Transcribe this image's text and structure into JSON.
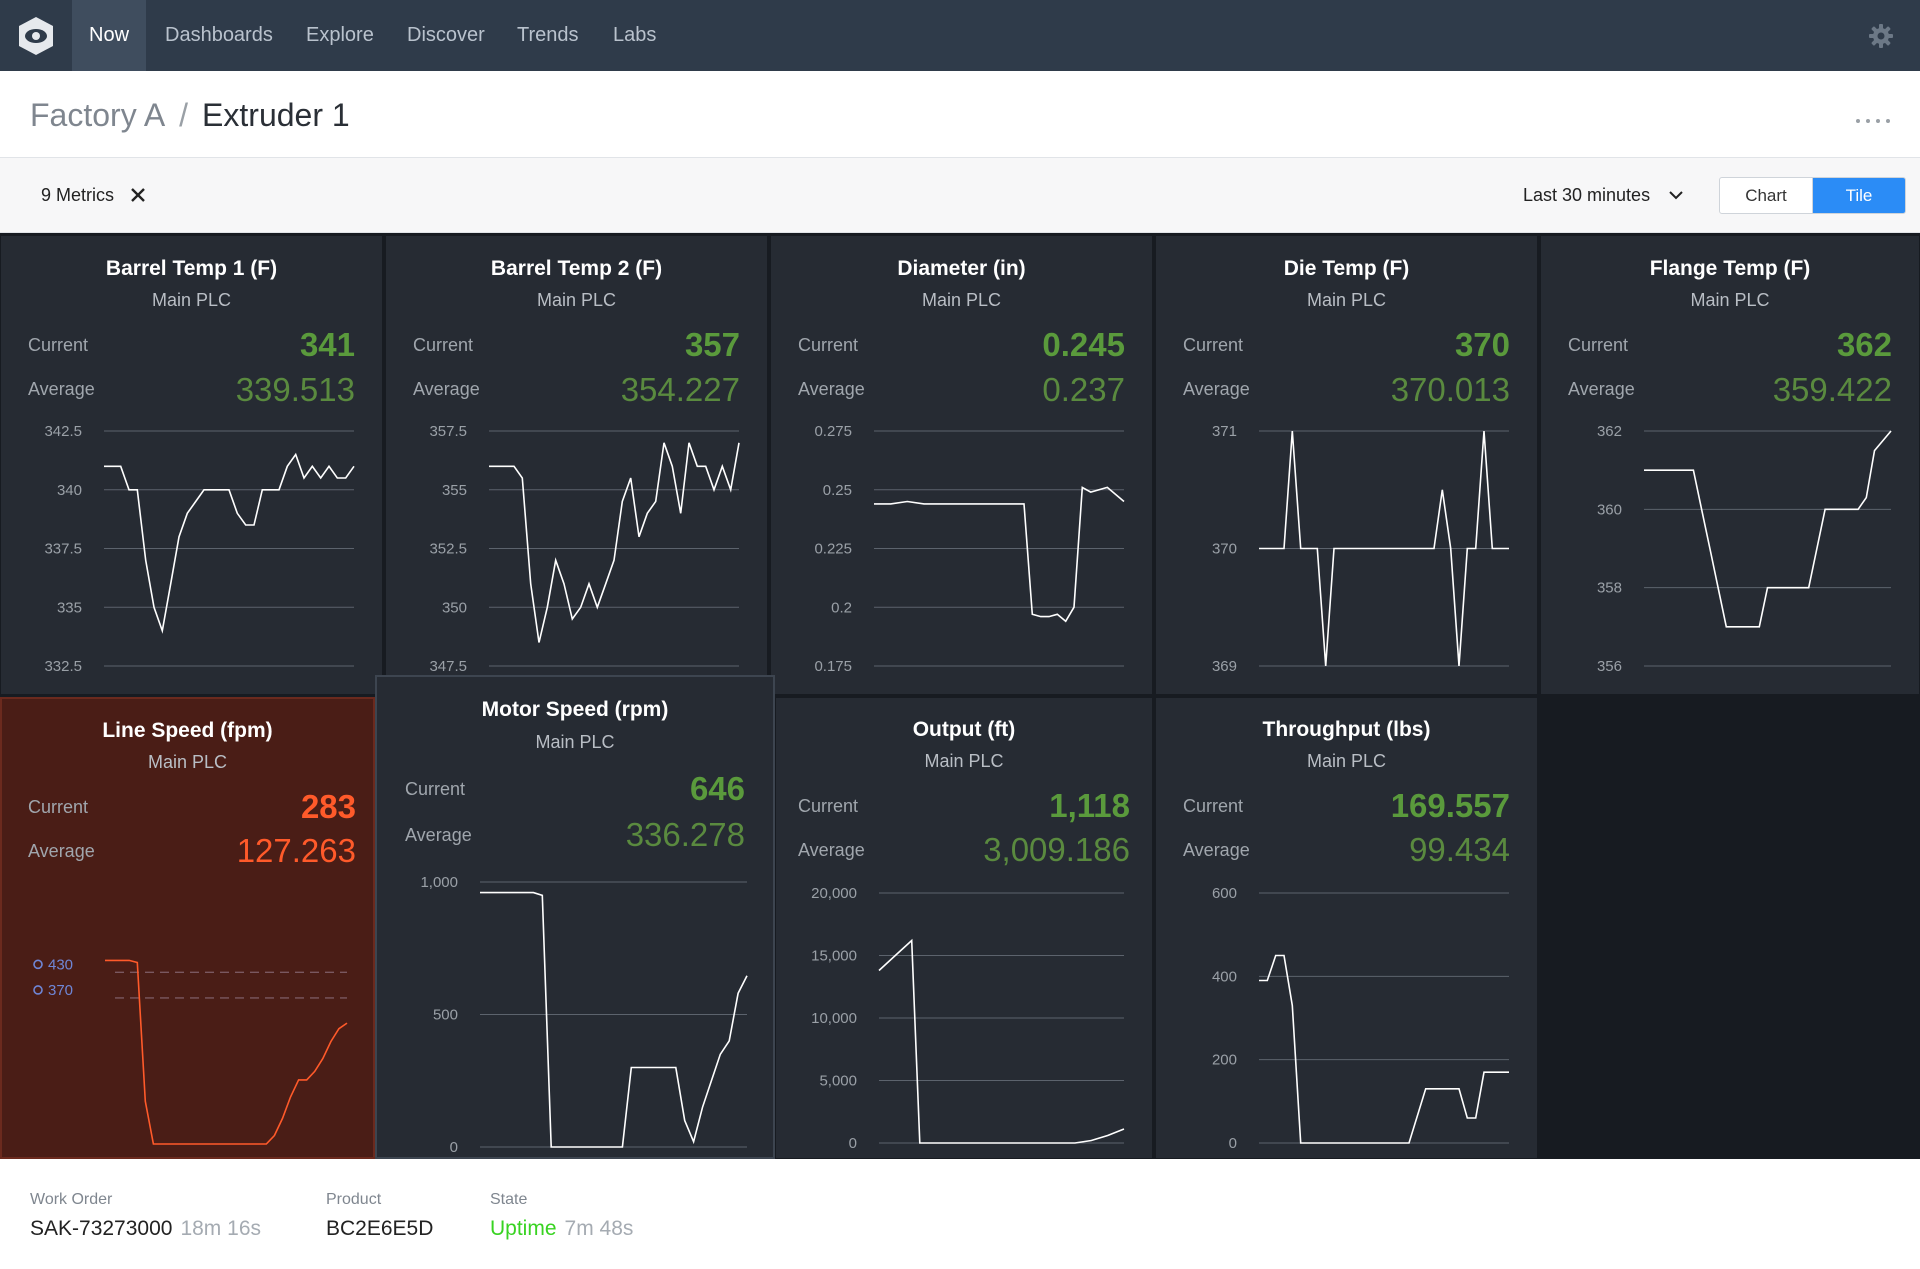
{
  "nav": {
    "items": [
      "Now",
      "Dashboards",
      "Explore",
      "Discover",
      "Trends",
      "Labs"
    ],
    "active": "Now"
  },
  "breadcrumb": {
    "parent": "Factory A",
    "separator": "/",
    "current": "Extruder 1"
  },
  "filter": {
    "metrics_label": "9 Metrics",
    "time_range": "Last 30 minutes",
    "view_chart": "Chart",
    "view_tile": "Tile",
    "active_view": "Tile"
  },
  "labels": {
    "current": "Current",
    "average": "Average"
  },
  "colors": {
    "good": "#5a9a3c",
    "alert": "#ff5a2a",
    "accent": "#2b8cf6",
    "alert_bg": "#4a1d16",
    "uptime": "#38d321"
  },
  "tiles": [
    {
      "title": "Barrel Temp 1 (F)",
      "source": "Main PLC",
      "current": "341",
      "average": "339.513",
      "status": "normal"
    },
    {
      "title": "Barrel Temp 2 (F)",
      "source": "Main PLC",
      "current": "357",
      "average": "354.227",
      "status": "normal"
    },
    {
      "title": "Diameter (in)",
      "source": "Main PLC",
      "current": "0.245",
      "average": "0.237",
      "status": "normal"
    },
    {
      "title": "Die Temp (F)",
      "source": "Main PLC",
      "current": "370",
      "average": "370.013",
      "status": "normal"
    },
    {
      "title": "Flange Temp (F)",
      "source": "Main PLC",
      "current": "362",
      "average": "359.422",
      "status": "normal"
    },
    {
      "title": "Line Speed (fpm)",
      "source": "Main PLC",
      "current": "283",
      "average": "127.263",
      "status": "alert"
    },
    {
      "title": "Motor Speed (rpm)",
      "source": "Main PLC",
      "current": "646",
      "average": "336.278",
      "status": "normal"
    },
    {
      "title": "Output (ft)",
      "source": "Main PLC",
      "current": "1,118",
      "average": "3,009.186",
      "status": "normal"
    },
    {
      "title": "Throughput (lbs)",
      "source": "Main PLC",
      "current": "169.557",
      "average": "99.434",
      "status": "normal"
    }
  ],
  "chart_data": [
    {
      "type": "line",
      "title": "Barrel Temp 1 (F)",
      "yticks": [
        "342.5",
        "340",
        "337.5",
        "335",
        "332.5"
      ],
      "ylim": [
        332.5,
        342.5
      ],
      "x": [
        0,
        1,
        2,
        3,
        4,
        5,
        6,
        7,
        8,
        9,
        10,
        11,
        12,
        13,
        14,
        15,
        16,
        17,
        18,
        19,
        20,
        21,
        22,
        23,
        24,
        25,
        26,
        27,
        28,
        29,
        30
      ],
      "y": [
        341,
        341,
        341,
        340,
        340,
        337,
        335,
        334,
        336,
        338,
        339,
        339.5,
        340,
        340,
        340,
        340,
        339,
        338.5,
        338.5,
        340,
        340,
        340,
        341,
        341.5,
        340.5,
        341,
        340.5,
        341,
        340.5,
        340.5,
        341
      ]
    },
    {
      "type": "line",
      "title": "Barrel Temp 2 (F)",
      "yticks": [
        "357.5",
        "355",
        "352.5",
        "350",
        "347.5"
      ],
      "ylim": [
        347.5,
        357.5
      ],
      "x": [
        0,
        1,
        2,
        3,
        4,
        5,
        6,
        7,
        8,
        9,
        10,
        11,
        12,
        13,
        14,
        15,
        16,
        17,
        18,
        19,
        20,
        21,
        22,
        23,
        24,
        25,
        26,
        27,
        28,
        29,
        30
      ],
      "y": [
        356,
        356,
        356,
        356,
        355.5,
        351,
        348.5,
        350,
        352,
        351,
        349.5,
        350,
        351,
        350,
        351,
        352,
        354.5,
        355.5,
        353,
        354,
        354.5,
        357,
        356,
        354,
        357,
        356,
        356,
        355,
        356,
        355,
        357
      ]
    },
    {
      "type": "line",
      "title": "Diameter (in)",
      "yticks": [
        "0.275",
        "0.25",
        "0.225",
        "0.2",
        "0.175"
      ],
      "ylim": [
        0.175,
        0.275
      ],
      "x": [
        0,
        2,
        4,
        6,
        8,
        10,
        12,
        14,
        16,
        17,
        18,
        19,
        20,
        21,
        22,
        23,
        24,
        25,
        26,
        28,
        30
      ],
      "y": [
        0.244,
        0.244,
        0.245,
        0.244,
        0.244,
        0.244,
        0.244,
        0.244,
        0.244,
        0.244,
        0.244,
        0.197,
        0.196,
        0.196,
        0.197,
        0.194,
        0.2,
        0.251,
        0.249,
        0.251,
        0.245
      ]
    },
    {
      "type": "line",
      "title": "Die Temp (F)",
      "yticks": [
        "371",
        "370",
        "369"
      ],
      "ylim": [
        369,
        371
      ],
      "x": [
        0,
        2,
        3,
        4,
        5,
        7,
        8,
        9,
        10,
        12,
        14,
        16,
        18,
        20,
        21,
        22,
        23,
        24,
        25,
        26,
        27,
        28,
        30
      ],
      "y": [
        370,
        370,
        370,
        371,
        370,
        370,
        369,
        370,
        370,
        370,
        370,
        370,
        370,
        370,
        370,
        370.5,
        370,
        369,
        370,
        370,
        371,
        370,
        370
      ]
    },
    {
      "type": "line",
      "title": "Flange Temp (F)",
      "yticks": [
        "362",
        "360",
        "358",
        "356"
      ],
      "ylim": [
        356,
        362
      ],
      "x": [
        0,
        2,
        4,
        6,
        7,
        8,
        9,
        10,
        12,
        14,
        15,
        16,
        18,
        20,
        21,
        22,
        24,
        26,
        27,
        28,
        30
      ],
      "y": [
        361,
        361,
        361,
        361,
        360,
        359,
        358,
        357,
        357,
        357,
        358,
        358,
        358,
        358,
        359,
        360,
        360,
        360,
        360.3,
        361.5,
        362
      ]
    },
    {
      "type": "line",
      "title": "Line Speed (fpm)",
      "annotations": [
        "430",
        "370"
      ],
      "x": [
        0,
        1,
        2,
        3,
        4,
        5,
        6,
        8,
        10,
        12,
        14,
        16,
        18,
        20,
        21,
        22,
        23,
        24,
        25,
        26,
        27,
        28,
        29,
        30
      ],
      "y": [
        430,
        430,
        430,
        430,
        425,
        100,
        0,
        0,
        0,
        0,
        0,
        0,
        0,
        0,
        20,
        60,
        110,
        150,
        150,
        170,
        200,
        240,
        270,
        283
      ]
    },
    {
      "type": "line",
      "title": "Motor Speed (rpm)",
      "yticks": [
        "1,000",
        "500",
        "0"
      ],
      "ylim": [
        0,
        1000
      ],
      "x": [
        0,
        2,
        4,
        6,
        7,
        8,
        10,
        12,
        14,
        16,
        17,
        18,
        20,
        22,
        23,
        24,
        25,
        26,
        27,
        28,
        29,
        30
      ],
      "y": [
        960,
        960,
        960,
        960,
        950,
        0,
        0,
        0,
        0,
        0,
        300,
        300,
        300,
        300,
        100,
        20,
        150,
        250,
        350,
        400,
        580,
        646
      ]
    },
    {
      "type": "line",
      "title": "Output (ft)",
      "yticks": [
        "20,000",
        "15,000",
        "10,000",
        "5,000",
        "0"
      ],
      "ylim": [
        0,
        20000
      ],
      "x": [
        0,
        2,
        4,
        5,
        6,
        8,
        10,
        12,
        14,
        16,
        18,
        20,
        22,
        24,
        26,
        28,
        30
      ],
      "y": [
        13800,
        15000,
        16200,
        0,
        0,
        0,
        0,
        0,
        0,
        0,
        0,
        0,
        0,
        0,
        200,
        600,
        1118
      ]
    },
    {
      "type": "line",
      "title": "Throughput (lbs)",
      "yticks": [
        "600",
        "400",
        "200",
        "0"
      ],
      "ylim": [
        0,
        600
      ],
      "x": [
        0,
        1,
        2,
        3,
        4,
        5,
        6,
        8,
        10,
        12,
        14,
        16,
        18,
        20,
        22,
        24,
        25,
        26,
        27,
        28,
        30
      ],
      "y": [
        390,
        390,
        450,
        450,
        330,
        0,
        0,
        0,
        0,
        0,
        0,
        0,
        0,
        130,
        130,
        130,
        60,
        60,
        170,
        170,
        170
      ]
    }
  ],
  "footer": {
    "work_order_label": "Work Order",
    "work_order": "SAK-73273000",
    "work_order_elapsed": "18m 16s",
    "product_label": "Product",
    "product": "BC2E6E5D",
    "state_label": "State",
    "state": "Uptime",
    "state_elapsed": "7m 48s"
  }
}
